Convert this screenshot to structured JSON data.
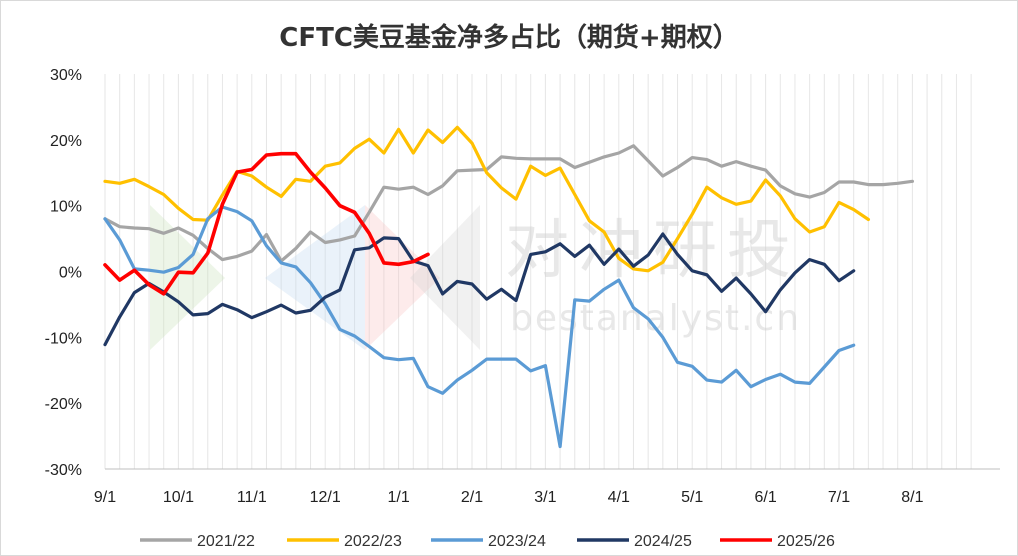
{
  "chart_data": {
    "type": "line",
    "title": "CFTC美豆基金净多占比（期货+期权）",
    "ylim": [
      -30,
      30
    ],
    "y_ticks": [
      {
        "value": 30,
        "label": "30%"
      },
      {
        "value": 20,
        "label": "20%"
      },
      {
        "value": 10,
        "label": "10%"
      },
      {
        "value": 0,
        "label": "0%"
      },
      {
        "value": -10,
        "label": "-10%"
      },
      {
        "value": -20,
        "label": "-20%"
      },
      {
        "value": -30,
        "label": "-30%"
      }
    ],
    "x_ticks": [
      {
        "index": 0,
        "label": "9/1"
      },
      {
        "index": 5,
        "label": "10/1"
      },
      {
        "index": 10,
        "label": "11/1"
      },
      {
        "index": 15,
        "label": "12/1"
      },
      {
        "index": 20,
        "label": "1/1"
      },
      {
        "index": 25,
        "label": "2/1"
      },
      {
        "index": 30,
        "label": "3/1"
      },
      {
        "index": 35,
        "label": "4/1"
      },
      {
        "index": 40,
        "label": "5/1"
      },
      {
        "index": 45,
        "label": "6/1"
      },
      {
        "index": 50,
        "label": "7/1"
      },
      {
        "index": 55,
        "label": "8/1"
      }
    ],
    "n_weeks": 59,
    "grid": "vertical",
    "legend_position": "bottom",
    "series": [
      {
        "name": "2021/22",
        "color": "#a5a5a5",
        "values": [
          8,
          6.8,
          6.6,
          6.5,
          5.8,
          6.6,
          5.5,
          3.5,
          1.8,
          2.3,
          3.1,
          5.6,
          1.6,
          3.5,
          6,
          4.4,
          4.8,
          5.4,
          9,
          12.8,
          12.5,
          12.8,
          11.7,
          13,
          15.3,
          15.4,
          15.5,
          17.4,
          17.2,
          17.1,
          17.1,
          17.1,
          15.8,
          16.6,
          17.4,
          18,
          19.1,
          16.8,
          14.5,
          15.8,
          17.3,
          17,
          16,
          16.7,
          16,
          15.4,
          13,
          11.8,
          11.3,
          12,
          13.6,
          13.6,
          13.2,
          13.2,
          13.4,
          13.7
        ]
      },
      {
        "name": "2022/23",
        "color": "#ffc000",
        "values": [
          13.7,
          13.4,
          14,
          12.9,
          11.7,
          9.6,
          7.9,
          7.8,
          11.6,
          15.2,
          14.5,
          12.8,
          11.4,
          14,
          13.7,
          16,
          16.5,
          18.7,
          20.1,
          18,
          21.6,
          18,
          21.5,
          19.6,
          21.9,
          19.5,
          15,
          12.7,
          11,
          16,
          14.6,
          15.7,
          11.7,
          7.7,
          6,
          2,
          0.4,
          0.1,
          1.4,
          5,
          8.7,
          12.8,
          11.2,
          10.2,
          10.7,
          13.9,
          11.5,
          8,
          6,
          6.8,
          10.5,
          9.4,
          7.9
        ]
      },
      {
        "name": "2023/24",
        "color": "#5b9bd5",
        "values": [
          8,
          4.8,
          0.4,
          0.2,
          -0.1,
          0.6,
          2.6,
          8,
          9.8,
          9.1,
          7.7,
          3.9,
          1.3,
          0.7,
          -1.7,
          -4.9,
          -8.8,
          -9.8,
          -11.4,
          -13.1,
          -13.4,
          -13.2,
          -17.5,
          -18.5,
          -16.5,
          -15,
          -13.3,
          -13.3,
          -13.3,
          -15.1,
          -14.3,
          -26.6,
          -4.3,
          -4.5,
          -2.7,
          -1.3,
          -5.5,
          -7.2,
          -10,
          -13.8,
          -14.4,
          -16.5,
          -16.8,
          -15,
          -17.5,
          -16.4,
          -15.6,
          -16.8,
          -17,
          -14.5,
          -12,
          -11.2
        ]
      },
      {
        "name": "2024/25",
        "color": "#203864",
        "values": [
          -11.1,
          -6.9,
          -3.2,
          -1.8,
          -3.1,
          -4.6,
          -6.6,
          -6.4,
          -5,
          -5.8,
          -7,
          -6.1,
          -5.1,
          -6.3,
          -5.9,
          -3.9,
          -2.8,
          3.3,
          3.6,
          5.1,
          5,
          1.6,
          0.9,
          -3.4,
          -1.5,
          -1.9,
          -4.2,
          -2.7,
          -4.4,
          2.6,
          3,
          4.2,
          2.3,
          4,
          1.1,
          3.4,
          0.8,
          2.5,
          5.7,
          2.6,
          0.1,
          -0.5,
          -3,
          -1,
          -3.4,
          -6.1,
          -2.8,
          -0.2,
          1.8,
          1.1,
          -1.4,
          0.1
        ]
      },
      {
        "name": "2025/26",
        "color": "#ff0000",
        "values": [
          1,
          -1.3,
          0.2,
          -2,
          -3.4,
          -0.1,
          -0.2,
          2.8,
          10.2,
          15.1,
          15.5,
          17.7,
          17.9,
          17.9,
          15.1,
          12.7,
          10,
          9,
          5.8,
          1.3,
          1.1,
          1.5,
          2.6
        ]
      }
    ]
  },
  "watermark": {
    "text_cn": "对冲研投",
    "text_en": "bestanalyst.cn"
  }
}
